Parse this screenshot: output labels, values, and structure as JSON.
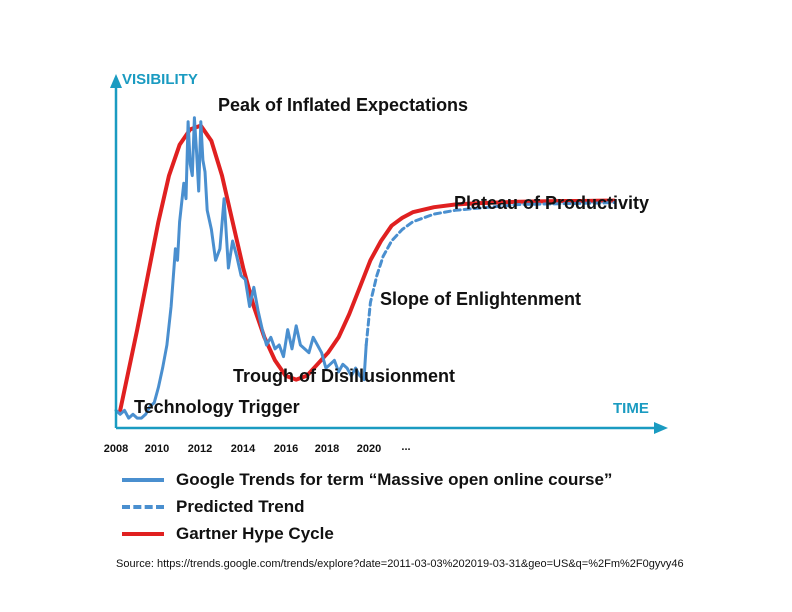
{
  "colors": {
    "axis": "#1a9bc1",
    "trends": "#4a8fcf",
    "gartner": "#e02020"
  },
  "chart_data": {
    "type": "line",
    "y_axis_title": "VISIBILITY",
    "x_axis_title": "TIME",
    "x_ticks": [
      "2008",
      "2010",
      "2012",
      "2014",
      "2016",
      "2018",
      "2020",
      "..."
    ],
    "phases": [
      "Peak of Inflated Expectations",
      "Plateau of Productivity",
      "Slope of Enlightenment",
      "Trough of Disillusionment",
      "Technology Trigger"
    ],
    "series": [
      {
        "name": "Google Trends for term “Massive open online course”",
        "style": "solid",
        "x": [
          2008.0,
          2008.2,
          2008.4,
          2008.6,
          2008.8,
          2009.0,
          2009.2,
          2009.4,
          2009.6,
          2009.8,
          2010.0,
          2010.2,
          2010.4,
          2010.6,
          2010.8,
          2010.9,
          2011.0,
          2011.2,
          2011.3,
          2011.4,
          2011.5,
          2011.6,
          2011.7,
          2011.8,
          2011.9,
          2012.0,
          2012.1,
          2012.2,
          2012.3,
          2012.5,
          2012.7,
          2012.9,
          2013.1,
          2013.3,
          2013.5,
          2013.7,
          2013.9,
          2014.1,
          2014.3,
          2014.5,
          2014.7,
          2014.9,
          2015.1,
          2015.3,
          2015.5,
          2015.7,
          2015.9,
          2016.1,
          2016.3,
          2016.5,
          2016.7,
          2016.9,
          2017.1,
          2017.3,
          2017.5,
          2017.7,
          2017.9,
          2018.1,
          2018.3,
          2018.5,
          2018.7,
          2018.9,
          2019.1,
          2019.3,
          2019.5,
          2019.7,
          2019.8
        ],
        "y": [
          3,
          2,
          3,
          1,
          2,
          1,
          1,
          2,
          4,
          5,
          9,
          14,
          20,
          30,
          45,
          42,
          52,
          62,
          58,
          78,
          67,
          64,
          79,
          70,
          60,
          78,
          68,
          65,
          55,
          50,
          42,
          45,
          58,
          40,
          47,
          43,
          38,
          37,
          30,
          35,
          29,
          24,
          20,
          22,
          19,
          20,
          17,
          24,
          19,
          25,
          20,
          19,
          18,
          22,
          20,
          18,
          14,
          15,
          16,
          13,
          15,
          14,
          12,
          14,
          12,
          11,
          20
        ]
      },
      {
        "name": "Predicted Trend",
        "style": "dashed",
        "x": [
          2019.8,
          2020.0,
          2020.3,
          2020.6,
          2021.0,
          2021.5,
          2022,
          2023,
          2024,
          2025,
          2026,
          2027,
          2028,
          2029,
          2030,
          2031,
          2031.5
        ],
        "y": [
          20,
          31,
          38,
          43,
          47,
          50,
          52,
          54,
          55,
          55.5,
          56,
          56.5,
          56.6,
          56.7,
          56.8,
          56.9,
          57
        ]
      },
      {
        "name": "Gartner Hype Cycle",
        "style": "solid",
        "x": [
          2008.2,
          2009.0,
          2009.5,
          2010.0,
          2010.5,
          2011.0,
          2011.5,
          2012.0,
          2012.5,
          2013.0,
          2013.5,
          2014.0,
          2014.5,
          2015.0,
          2015.5,
          2016.0,
          2016.5,
          2017.0,
          2017.5,
          2018.0,
          2018.5,
          2019.0,
          2019.5,
          2020.0,
          2020.5,
          2021.0,
          2021.5,
          2022,
          2023,
          2024,
          2025,
          2026,
          2027,
          2028,
          2029,
          2030,
          2031,
          2031.5
        ],
        "y": [
          3,
          24,
          38,
          52,
          64,
          72,
          76,
          77,
          73,
          64,
          52,
          40,
          30,
          22,
          16,
          12,
          11,
          12,
          15,
          18,
          22,
          28,
          35,
          42,
          47,
          51,
          53,
          54.5,
          55.8,
          56.5,
          56.8,
          57,
          57.2,
          57.3,
          57.4,
          57.4,
          57.5,
          57.5
        ]
      }
    ],
    "legend_placement": "bottom"
  },
  "source_text": "Source: https://trends.google.com/trends/explore?date=2011-03-03%202019-03-31&geo=US&q=%2Fm%2F0gyvy46"
}
